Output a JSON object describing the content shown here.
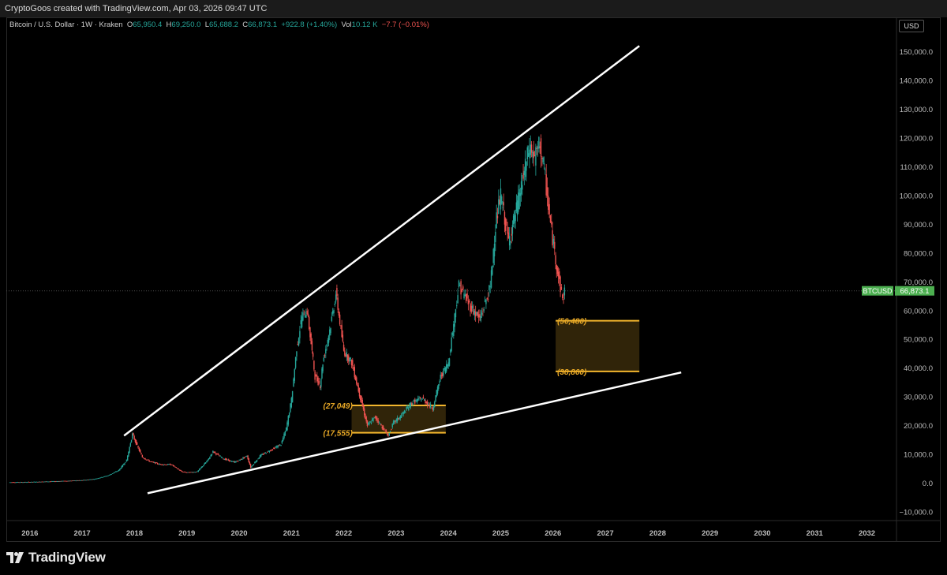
{
  "header": {
    "credit": "CryptoGoos created with TradingView.com, Apr 03, 2026 09:47 UTC"
  },
  "legend": {
    "symbol": "Bitcoin / U.S. Dollar · 1W · Kraken",
    "o_label": "O",
    "o": "65,950.4",
    "h_label": "H",
    "h": "69,250.0",
    "l_label": "L",
    "l": "65,688.2",
    "c_label": "C",
    "c": "66,873.1",
    "change": "+922.8 (+1.40%)",
    "vol_label": "Vol",
    "vol": "10.12 K",
    "vol_change": "−7.7 (−0.01%)"
  },
  "currency": "USD",
  "price_tag": {
    "symbol": "BTCUSD",
    "price": "66,873.1"
  },
  "brand": {
    "name": "TradingView"
  },
  "colors": {
    "up": "#26a69a",
    "down": "#ef5350",
    "zone": "#f2b52d",
    "trend": "#ffffff",
    "tag": "#4caf50"
  },
  "chart_data": {
    "type": "line",
    "title": "",
    "xlabel": "",
    "ylabel": "",
    "x_ticks": [
      "2016",
      "2017",
      "2018",
      "2019",
      "2020",
      "2021",
      "2022",
      "2023",
      "2024",
      "2025",
      "2026",
      "2027",
      "2028",
      "2029",
      "2030",
      "2031",
      "2032"
    ],
    "y_ticks": [
      "150,000.0",
      "140,000.0",
      "130,000.0",
      "120,000.0",
      "110,000.0",
      "100,000.0",
      "90,000.0",
      "80,000.0",
      "70,000.0",
      "60,000.0",
      "50,000.0",
      "40,000.0",
      "30,000.0",
      "20,000.0",
      "10,000.0",
      "0.0",
      "−10,000.0"
    ],
    "ylim": [
      -13000,
      157000
    ],
    "xlim": [
      2015.55,
      2032.55
    ],
    "series": [
      {
        "x": [
          2015.6,
          2016.0,
          2016.5,
          2017.0,
          2017.25,
          2017.5,
          2017.7,
          2017.85,
          2017.96,
          2018.05,
          2018.15,
          2018.3,
          2018.5,
          2018.7,
          2018.9,
          2019.0,
          2019.2,
          2019.4,
          2019.5,
          2019.7,
          2019.9,
          2020.0,
          2020.15,
          2020.22,
          2020.4,
          2020.6,
          2020.8,
          2020.9,
          2021.0,
          2021.1,
          2021.2,
          2021.3,
          2021.45,
          2021.55,
          2021.6,
          2021.75,
          2021.85,
          2022.0,
          2022.15,
          2022.3,
          2022.45,
          2022.6,
          2022.85,
          2022.95,
          2023.1,
          2023.3,
          2023.5,
          2023.7,
          2023.85,
          2024.0,
          2024.2,
          2024.4,
          2024.6,
          2024.8,
          2024.9,
          2025.0,
          2025.15,
          2025.3,
          2025.45,
          2025.55,
          2025.65,
          2025.75,
          2025.85,
          2025.95,
          2026.05,
          2026.12,
          2026.18,
          2026.22
        ],
        "y": [
          300,
          400,
          650,
          1000,
          1500,
          2700,
          4500,
          8000,
          17000,
          13000,
          9000,
          7500,
          6500,
          6500,
          4000,
          3700,
          4000,
          8000,
          11000,
          8500,
          7300,
          8000,
          9500,
          5500,
          9500,
          11500,
          13500,
          19000,
          29000,
          47000,
          58000,
          60000,
          37000,
          34000,
          42000,
          55000,
          66000,
          46000,
          42000,
          31000,
          20000,
          23000,
          16500,
          21000,
          23500,
          28000,
          29500,
          26000,
          37000,
          42000,
          69000,
          62000,
          57000,
          68000,
          90000,
          100000,
          84000,
          95000,
          108000,
          117000,
          113000,
          118000,
          106000,
          90000,
          78000,
          70000,
          64000,
          66873
        ]
      }
    ],
    "trendlines": [
      {
        "name": "upper",
        "from": [
          2017.8,
          16500
        ],
        "to": [
          2027.65,
          152000
        ]
      },
      {
        "name": "lower",
        "from": [
          2018.25,
          -3500
        ],
        "to": [
          2028.45,
          38500
        ]
      }
    ],
    "zones": [
      {
        "label_high": "(27,049)",
        "label_low": "(17,555)",
        "high": 27049,
        "low": 17555,
        "x_from": 2022.15,
        "x_to": 2023.95
      },
      {
        "label_high": "(56,480)",
        "label_low": "(38,860)",
        "high": 56480,
        "low": 38860,
        "x_from": 2026.05,
        "x_to": 2027.65
      }
    ],
    "last_price": 66873.1,
    "grid": false,
    "legend": "top-left"
  }
}
